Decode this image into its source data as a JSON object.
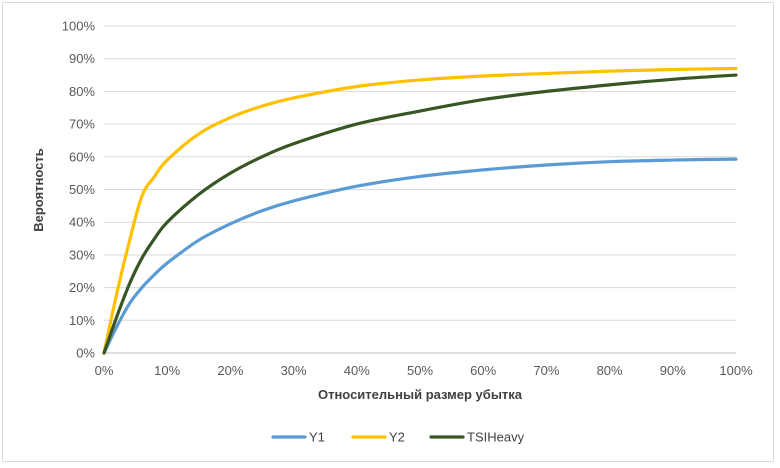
{
  "chart_data": {
    "type": "line",
    "title": "",
    "xlabel": "Относительный размер убытка",
    "ylabel": "Вероятность",
    "xlim": [
      0,
      100
    ],
    "ylim": [
      0,
      100
    ],
    "x_ticks": [
      "0%",
      "10%",
      "20%",
      "30%",
      "40%",
      "50%",
      "60%",
      "70%",
      "80%",
      "90%",
      "100%"
    ],
    "y_ticks": [
      "0%",
      "10%",
      "20%",
      "30%",
      "40%",
      "50%",
      "60%",
      "70%",
      "80%",
      "90%",
      "100%"
    ],
    "grid": true,
    "legend_position": "bottom",
    "x": [
      0,
      2,
      4,
      6,
      8,
      10,
      15,
      20,
      25,
      30,
      40,
      50,
      60,
      70,
      80,
      90,
      100
    ],
    "series": [
      {
        "name": "Y1",
        "color": "#5b9bd5",
        "values": [
          0,
          8,
          15,
          20,
          24,
          27.5,
          34.5,
          39.5,
          43.5,
          46.5,
          51,
          54,
          56,
          57.5,
          58.5,
          59,
          59.3
        ]
      },
      {
        "name": "Y2",
        "color": "#ffc000",
        "values": [
          0,
          18,
          34,
          48,
          54,
          59,
          67,
          72,
          75.5,
          78,
          81.5,
          83.5,
          84.7,
          85.5,
          86.2,
          86.7,
          87
        ]
      },
      {
        "name": "TSIHeavy",
        "color": "#375623",
        "values": [
          0,
          11,
          21,
          29,
          35,
          40,
          48.5,
          55,
          60,
          64,
          70,
          74,
          77.5,
          80,
          82,
          83.7,
          85
        ]
      }
    ]
  }
}
